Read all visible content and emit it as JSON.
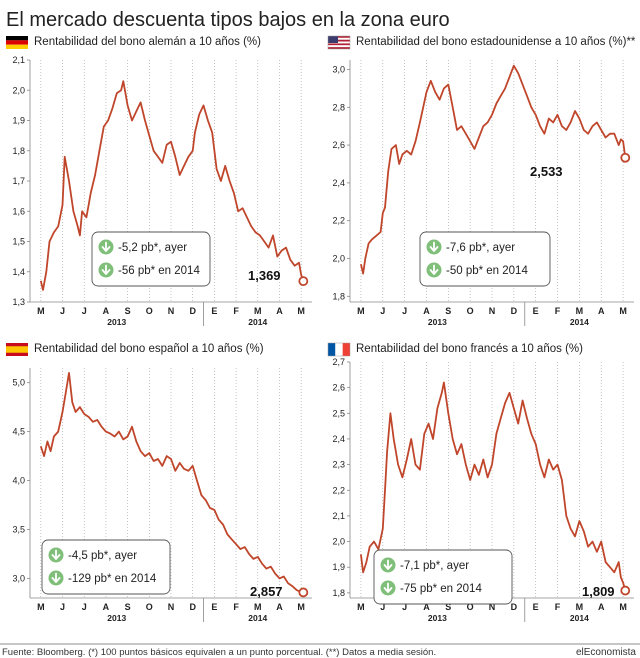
{
  "title": "El mercado descuenta tipos bajos en la zona euro",
  "footer": {
    "source": "Fuente: Bloomberg. (*) 100 puntos básicos equivalen a un punto porcentual. (**) Datos a media sesión.",
    "brand": "elEconomista"
  },
  "colors": {
    "line": "#c0462b",
    "gridline": "#9e9e9e",
    "text": "#222222",
    "badge": "#7fbf7a"
  },
  "chart_data": [
    {
      "type": "line",
      "title": "Rentabilidad del bono alemán a 10 años (%)",
      "flag": "germany-flag",
      "months": [
        "M",
        "J",
        "J",
        "A",
        "S",
        "O",
        "N",
        "D",
        "E",
        "F",
        "M",
        "A",
        "M"
      ],
      "years": [
        "2013",
        "2014"
      ],
      "yticks": [
        "1,3",
        "1,4",
        "1,5",
        "1,6",
        "1,7",
        "1,8",
        "1,9",
        "2,0",
        "2,1"
      ],
      "ylim": [
        1.3,
        2.1
      ],
      "last_label": "1,369",
      "changes": [
        "-5,2 pb*, ayer",
        "-56 pb* en 2014"
      ],
      "x": [
        0,
        0.1,
        0.25,
        0.4,
        0.6,
        0.8,
        1.0,
        1.1,
        1.3,
        1.5,
        1.7,
        1.8,
        1.9,
        2.1,
        2.2,
        2.3,
        2.5,
        2.7,
        2.9,
        3.1,
        3.3,
        3.5,
        3.7,
        3.8,
        4.0,
        4.2,
        4.4,
        4.6,
        4.8,
        5.0,
        5.2,
        5.4,
        5.6,
        5.8,
        6.0,
        6.2,
        6.4,
        6.6,
        6.8,
        7.0,
        7.1,
        7.3,
        7.5,
        7.7,
        7.9,
        8.1,
        8.3,
        8.5,
        8.7,
        8.9,
        9.1,
        9.3,
        9.5,
        9.7,
        9.9,
        10.1,
        10.3,
        10.5,
        10.7,
        10.9,
        11.1,
        11.3,
        11.5,
        11.7,
        11.9,
        12.0,
        12.1
      ],
      "values": [
        1.37,
        1.34,
        1.4,
        1.5,
        1.53,
        1.55,
        1.62,
        1.78,
        1.7,
        1.6,
        1.55,
        1.52,
        1.6,
        1.58,
        1.62,
        1.66,
        1.72,
        1.8,
        1.88,
        1.9,
        1.94,
        1.99,
        2.0,
        2.03,
        1.95,
        1.9,
        1.93,
        1.96,
        1.9,
        1.85,
        1.8,
        1.78,
        1.76,
        1.82,
        1.83,
        1.78,
        1.72,
        1.75,
        1.78,
        1.8,
        1.86,
        1.92,
        1.95,
        1.9,
        1.86,
        1.74,
        1.7,
        1.75,
        1.7,
        1.66,
        1.6,
        1.61,
        1.58,
        1.55,
        1.53,
        1.52,
        1.5,
        1.48,
        1.52,
        1.45,
        1.47,
        1.48,
        1.44,
        1.42,
        1.43,
        1.39,
        1.369
      ]
    },
    {
      "type": "line",
      "title": "Rentabilidad del bono estadounidense a 10 años (%)**",
      "flag": "usa-flag",
      "months": [
        "M",
        "J",
        "J",
        "A",
        "S",
        "O",
        "N",
        "D",
        "E",
        "F",
        "M",
        "A",
        "M"
      ],
      "years": [
        "2013",
        "2014"
      ],
      "yticks": [
        "3,0",
        "2,8",
        "2,6",
        "2,4",
        "2,2",
        "2,0",
        "1,8"
      ],
      "ylim": [
        1.77,
        3.05
      ],
      "last_label": "2,533",
      "changes": [
        "-7,6 pb*, ayer",
        "-50 pb* en 2014"
      ],
      "x": [
        0,
        0.1,
        0.2,
        0.35,
        0.5,
        0.7,
        0.9,
        1.0,
        1.1,
        1.25,
        1.4,
        1.6,
        1.75,
        1.9,
        2.1,
        2.3,
        2.5,
        2.7,
        2.85,
        3.0,
        3.2,
        3.4,
        3.6,
        3.8,
        4.0,
        4.2,
        4.4,
        4.6,
        4.8,
        5.0,
        5.2,
        5.4,
        5.6,
        5.8,
        6.0,
        6.2,
        6.4,
        6.6,
        6.8,
        7.0,
        7.2,
        7.4,
        7.6,
        7.8,
        8.0,
        8.2,
        8.4,
        8.6,
        8.8,
        9.0,
        9.2,
        9.4,
        9.6,
        9.8,
        10.0,
        10.2,
        10.4,
        10.6,
        10.8,
        11.0,
        11.2,
        11.4,
        11.6,
        11.8,
        11.9,
        12.0,
        12.1
      ],
      "values": [
        1.97,
        1.92,
        2.0,
        2.08,
        2.1,
        2.12,
        2.14,
        2.24,
        2.27,
        2.46,
        2.58,
        2.6,
        2.5,
        2.55,
        2.57,
        2.55,
        2.62,
        2.72,
        2.8,
        2.88,
        2.94,
        2.88,
        2.84,
        2.9,
        2.92,
        2.8,
        2.68,
        2.7,
        2.66,
        2.62,
        2.58,
        2.64,
        2.7,
        2.72,
        2.76,
        2.82,
        2.86,
        2.9,
        2.96,
        3.02,
        2.98,
        2.92,
        2.86,
        2.8,
        2.76,
        2.7,
        2.66,
        2.74,
        2.72,
        2.76,
        2.7,
        2.68,
        2.72,
        2.78,
        2.74,
        2.68,
        2.66,
        2.7,
        2.72,
        2.68,
        2.64,
        2.66,
        2.66,
        2.6,
        2.63,
        2.62,
        2.533
      ]
    },
    {
      "type": "line",
      "title": "Rentabilidad del bono español a 10 años (%)",
      "flag": "spain-flag",
      "months": [
        "M",
        "J",
        "J",
        "A",
        "S",
        "O",
        "N",
        "D",
        "E",
        "F",
        "M",
        "A",
        "M"
      ],
      "years": [
        "2013",
        "2014"
      ],
      "yticks": [
        "5,0",
        "4,5",
        "4,0",
        "3,5",
        "3,0"
      ],
      "ylim": [
        2.8,
        5.15
      ],
      "last_label": "2,857",
      "changes": [
        "-4,5 pb*, ayer",
        "-129 pb* en 2014"
      ],
      "x": [
        0,
        0.15,
        0.3,
        0.45,
        0.6,
        0.8,
        1.0,
        1.15,
        1.3,
        1.45,
        1.6,
        1.8,
        2.0,
        2.2,
        2.4,
        2.6,
        2.8,
        3.0,
        3.2,
        3.4,
        3.6,
        3.8,
        4.0,
        4.2,
        4.4,
        4.6,
        4.8,
        5.0,
        5.2,
        5.4,
        5.6,
        5.8,
        6.0,
        6.2,
        6.4,
        6.6,
        6.8,
        7.0,
        7.2,
        7.4,
        7.6,
        7.8,
        8.0,
        8.2,
        8.4,
        8.6,
        8.8,
        9.0,
        9.2,
        9.4,
        9.6,
        9.8,
        10.0,
        10.2,
        10.4,
        10.6,
        10.8,
        11.0,
        11.2,
        11.4,
        11.6,
        11.8,
        12.0,
        12.1
      ],
      "values": [
        4.35,
        4.25,
        4.4,
        4.3,
        4.45,
        4.5,
        4.7,
        4.9,
        5.1,
        4.8,
        4.7,
        4.75,
        4.68,
        4.65,
        4.6,
        4.62,
        4.55,
        4.5,
        4.48,
        4.45,
        4.5,
        4.42,
        4.45,
        4.55,
        4.4,
        4.3,
        4.25,
        4.28,
        4.2,
        4.22,
        4.15,
        4.25,
        4.22,
        4.1,
        4.18,
        4.12,
        4.1,
        4.15,
        4.0,
        3.85,
        3.8,
        3.72,
        3.7,
        3.6,
        3.55,
        3.45,
        3.4,
        3.35,
        3.3,
        3.32,
        3.25,
        3.2,
        3.22,
        3.15,
        3.1,
        3.12,
        3.05,
        3.0,
        3.02,
        2.95,
        2.92,
        2.88,
        2.86,
        2.857
      ]
    },
    {
      "type": "line",
      "title": "Rentabilidad del bono francés a 10 años (%)",
      "flag": "france-flag",
      "months": [
        "M",
        "J",
        "J",
        "A",
        "S",
        "O",
        "N",
        "D",
        "E",
        "F",
        "M",
        "A",
        "M"
      ],
      "years": [
        "2013",
        "2014"
      ],
      "yticks": [
        "2,7",
        "2,6",
        "2,5",
        "2,4",
        "2,3",
        "2,2",
        "2,1",
        "2,0",
        "1,9",
        "1,8"
      ],
      "ylim": [
        1.78,
        2.7
      ],
      "last_label": "1,809",
      "changes": [
        "-7,1 pb*, ayer",
        "-75 pb* en 2014"
      ],
      "x": [
        0,
        0.1,
        0.25,
        0.4,
        0.6,
        0.8,
        1.0,
        1.1,
        1.2,
        1.35,
        1.5,
        1.7,
        1.9,
        2.1,
        2.3,
        2.5,
        2.7,
        2.9,
        3.1,
        3.3,
        3.5,
        3.7,
        3.8,
        4.0,
        4.2,
        4.4,
        4.6,
        4.8,
        5.0,
        5.2,
        5.4,
        5.6,
        5.8,
        6.0,
        6.2,
        6.4,
        6.6,
        6.8,
        7.0,
        7.2,
        7.4,
        7.6,
        7.8,
        8.0,
        8.2,
        8.4,
        8.6,
        8.8,
        9.0,
        9.2,
        9.4,
        9.6,
        9.8,
        10.0,
        10.2,
        10.4,
        10.6,
        10.8,
        11.0,
        11.2,
        11.4,
        11.6,
        11.8,
        11.9,
        12.0,
        12.1
      ],
      "values": [
        1.95,
        1.88,
        1.92,
        1.98,
        2.0,
        1.97,
        2.05,
        2.2,
        2.35,
        2.5,
        2.4,
        2.3,
        2.25,
        2.32,
        2.4,
        2.3,
        2.28,
        2.42,
        2.46,
        2.4,
        2.52,
        2.58,
        2.62,
        2.5,
        2.4,
        2.34,
        2.38,
        2.3,
        2.24,
        2.3,
        2.26,
        2.32,
        2.25,
        2.3,
        2.42,
        2.48,
        2.54,
        2.58,
        2.52,
        2.46,
        2.55,
        2.48,
        2.42,
        2.38,
        2.3,
        2.25,
        2.32,
        2.28,
        2.3,
        2.24,
        2.1,
        2.05,
        2.02,
        2.08,
        2.04,
        1.98,
        2.0,
        1.96,
        2.0,
        1.92,
        1.9,
        1.88,
        1.92,
        1.86,
        1.84,
        1.809
      ]
    }
  ]
}
